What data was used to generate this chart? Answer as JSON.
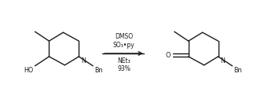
{
  "bg_color": "#ffffff",
  "line_color": "#1a1a1a",
  "text_color": "#1a1a1a",
  "figsize": [
    3.32,
    1.31
  ],
  "dpi": 100,
  "arrow_reagents_line1": "DMSO",
  "arrow_reagents_line2": "SO₃•py",
  "arrow_reagents_line3": "NEt₃",
  "arrow_reagents_line4": "93%",
  "lw": 1.0,
  "font_size": 5.8
}
